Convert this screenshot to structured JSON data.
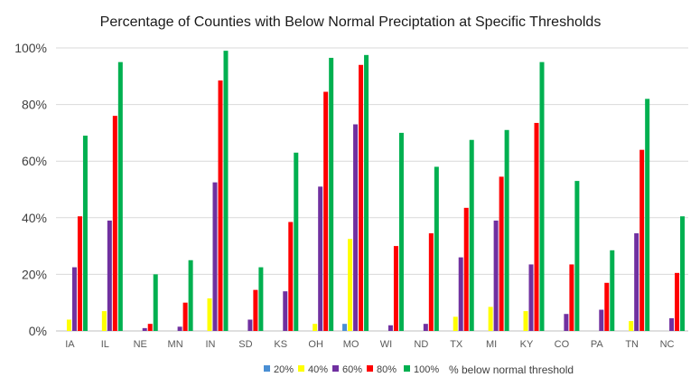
{
  "chart_data": {
    "type": "bar",
    "title": "Percentage of Counties with Below Normal Preciptation at Specific Thresholds",
    "xlabel": "",
    "ylabel": "",
    "categories": [
      "IA",
      "IL",
      "NE",
      "MN",
      "IN",
      "SD",
      "KS",
      "OH",
      "MO",
      "WI",
      "ND",
      "TX",
      "MI",
      "KY",
      "CO",
      "PA",
      "TN",
      "NC"
    ],
    "ylim": [
      0,
      100
    ],
    "yticks": [
      0,
      20,
      40,
      60,
      80,
      100
    ],
    "ytick_labels": [
      "0%",
      "20%",
      "40%",
      "60%",
      "80%",
      "100%"
    ],
    "grid": true,
    "legend_position": "bottom",
    "legend_title": "% below normal threshold",
    "series": [
      {
        "name": "20%",
        "color": "#4a8fd4",
        "values": [
          0,
          0,
          0,
          0,
          0,
          0,
          0,
          0,
          2.5,
          0,
          0,
          0,
          0,
          0,
          0,
          0,
          0,
          0
        ]
      },
      {
        "name": "40%",
        "color": "#ffff00",
        "values": [
          4,
          7,
          0,
          0,
          11.5,
          0,
          0,
          2.5,
          32.5,
          0,
          0,
          5,
          8.5,
          7,
          0,
          0,
          3.5,
          0
        ]
      },
      {
        "name": "60%",
        "color": "#7030a0",
        "values": [
          22.5,
          39,
          1,
          1.5,
          52.5,
          4,
          14,
          51,
          73,
          2,
          2.5,
          26,
          39,
          23.5,
          6,
          7.5,
          34.5,
          4.5
        ]
      },
      {
        "name": "80%",
        "color": "#ff0000",
        "values": [
          40.5,
          76,
          2.5,
          10,
          88.5,
          14.5,
          38.5,
          84.5,
          94,
          30,
          34.5,
          43.5,
          54.5,
          73.5,
          23.5,
          17,
          64,
          20.5
        ]
      },
      {
        "name": "100%",
        "color": "#00b050",
        "values": [
          69,
          95,
          20,
          25,
          99,
          22.5,
          63,
          96.5,
          97.5,
          70,
          58,
          67.5,
          71,
          95,
          53,
          28.5,
          82,
          40.5
        ]
      }
    ]
  }
}
